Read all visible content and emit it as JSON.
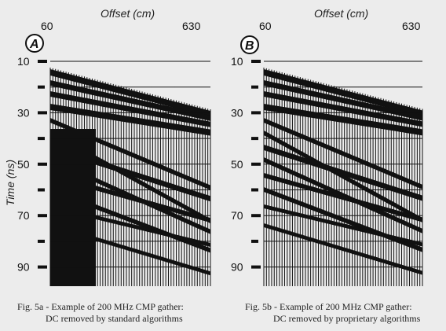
{
  "panels": [
    {
      "letter": "A",
      "offset_label": "Offset (cm)",
      "offset_start": "60",
      "offset_end": "630",
      "time_label": "Time (ns)",
      "time_ticks": [
        "10",
        "30",
        "50",
        "70",
        "90"
      ],
      "caption_line1": "Fig. 5a - Example of 200 MHz CMP gather:",
      "caption_line2": "DC removed by standard algorithms"
    },
    {
      "letter": "B",
      "offset_label": "Offset (cm)",
      "offset_start": "60",
      "offset_end": "630",
      "time_label": "",
      "time_ticks": [
        "10",
        "30",
        "50",
        "70",
        "90"
      ],
      "caption_line1": "Fig. 5b - Example of 200 MHz CMP gather:",
      "caption_line2": "DC removed by proprietary algorithms"
    }
  ],
  "colors": {
    "background": "#ececec",
    "ink": "#111111"
  }
}
